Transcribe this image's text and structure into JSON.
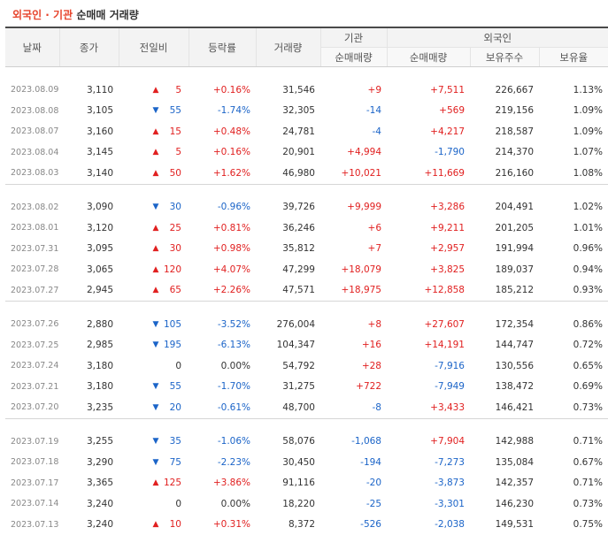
{
  "title": {
    "highlight": "외국인 · 기관",
    "rest": "순매매 거래량"
  },
  "columns": {
    "date": "날짜",
    "close": "종가",
    "change": "전일비",
    "rate": "등락률",
    "volume": "거래량",
    "institution": "기관",
    "foreign": "외국인",
    "inst_net": "순매매량",
    "foreign_net": "순매매량",
    "foreign_holding": "보유주수",
    "foreign_ratio": "보유율"
  },
  "groups": [
    {
      "rows": [
        {
          "date": "2023.08.09",
          "close": "3,110",
          "dir": "up",
          "arrow": "▲",
          "change": "5",
          "rate": "+0.16%",
          "volume": "31,546",
          "inst": "+9",
          "frgn": "+7,511",
          "hold": "226,667",
          "ratio": "1.13%"
        },
        {
          "date": "2023.08.08",
          "close": "3,105",
          "dir": "down",
          "arrow": "▼",
          "change": "55",
          "rate": "-1.74%",
          "volume": "32,305",
          "inst": "-14",
          "frgn": "+569",
          "hold": "219,156",
          "ratio": "1.09%"
        },
        {
          "date": "2023.08.07",
          "close": "3,160",
          "dir": "up",
          "arrow": "▲",
          "change": "15",
          "rate": "+0.48%",
          "volume": "24,781",
          "inst": "-4",
          "frgn": "+4,217",
          "hold": "218,587",
          "ratio": "1.09%"
        },
        {
          "date": "2023.08.04",
          "close": "3,145",
          "dir": "up",
          "arrow": "▲",
          "change": "5",
          "rate": "+0.16%",
          "volume": "20,901",
          "inst": "+4,994",
          "frgn": "-1,790",
          "hold": "214,370",
          "ratio": "1.07%"
        },
        {
          "date": "2023.08.03",
          "close": "3,140",
          "dir": "up",
          "arrow": "▲",
          "change": "50",
          "rate": "+1.62%",
          "volume": "46,980",
          "inst": "+10,021",
          "frgn": "+11,669",
          "hold": "216,160",
          "ratio": "1.08%"
        }
      ]
    },
    {
      "rows": [
        {
          "date": "2023.08.02",
          "close": "3,090",
          "dir": "down",
          "arrow": "▼",
          "change": "30",
          "rate": "-0.96%",
          "volume": "39,726",
          "inst": "+9,999",
          "frgn": "+3,286",
          "hold": "204,491",
          "ratio": "1.02%"
        },
        {
          "date": "2023.08.01",
          "close": "3,120",
          "dir": "up",
          "arrow": "▲",
          "change": "25",
          "rate": "+0.81%",
          "volume": "36,246",
          "inst": "+6",
          "frgn": "+9,211",
          "hold": "201,205",
          "ratio": "1.01%"
        },
        {
          "date": "2023.07.31",
          "close": "3,095",
          "dir": "up",
          "arrow": "▲",
          "change": "30",
          "rate": "+0.98%",
          "volume": "35,812",
          "inst": "+7",
          "frgn": "+2,957",
          "hold": "191,994",
          "ratio": "0.96%"
        },
        {
          "date": "2023.07.28",
          "close": "3,065",
          "dir": "up",
          "arrow": "▲",
          "change": "120",
          "rate": "+4.07%",
          "volume": "47,299",
          "inst": "+18,079",
          "frgn": "+3,825",
          "hold": "189,037",
          "ratio": "0.94%"
        },
        {
          "date": "2023.07.27",
          "close": "2,945",
          "dir": "up",
          "arrow": "▲",
          "change": "65",
          "rate": "+2.26%",
          "volume": "47,571",
          "inst": "+18,975",
          "frgn": "+12,858",
          "hold": "185,212",
          "ratio": "0.93%"
        }
      ]
    },
    {
      "rows": [
        {
          "date": "2023.07.26",
          "close": "2,880",
          "dir": "down",
          "arrow": "▼",
          "change": "105",
          "rate": "-3.52%",
          "volume": "276,004",
          "inst": "+8",
          "frgn": "+27,607",
          "hold": "172,354",
          "ratio": "0.86%"
        },
        {
          "date": "2023.07.25",
          "close": "2,985",
          "dir": "down",
          "arrow": "▼",
          "change": "195",
          "rate": "-6.13%",
          "volume": "104,347",
          "inst": "+16",
          "frgn": "+14,191",
          "hold": "144,747",
          "ratio": "0.72%"
        },
        {
          "date": "2023.07.24",
          "close": "3,180",
          "dir": "flat",
          "arrow": "",
          "change": "0",
          "rate": "0.00%",
          "volume": "54,792",
          "inst": "+28",
          "frgn": "-7,916",
          "hold": "130,556",
          "ratio": "0.65%"
        },
        {
          "date": "2023.07.21",
          "close": "3,180",
          "dir": "down",
          "arrow": "▼",
          "change": "55",
          "rate": "-1.70%",
          "volume": "31,275",
          "inst": "+722",
          "frgn": "-7,949",
          "hold": "138,472",
          "ratio": "0.69%"
        },
        {
          "date": "2023.07.20",
          "close": "3,235",
          "dir": "down",
          "arrow": "▼",
          "change": "20",
          "rate": "-0.61%",
          "volume": "48,700",
          "inst": "-8",
          "frgn": "+3,433",
          "hold": "146,421",
          "ratio": "0.73%"
        }
      ]
    },
    {
      "rows": [
        {
          "date": "2023.07.19",
          "close": "3,255",
          "dir": "down",
          "arrow": "▼",
          "change": "35",
          "rate": "-1.06%",
          "volume": "58,076",
          "inst": "-1,068",
          "frgn": "+7,904",
          "hold": "142,988",
          "ratio": "0.71%"
        },
        {
          "date": "2023.07.18",
          "close": "3,290",
          "dir": "down",
          "arrow": "▼",
          "change": "75",
          "rate": "-2.23%",
          "volume": "30,450",
          "inst": "-194",
          "frgn": "-7,273",
          "hold": "135,084",
          "ratio": "0.67%"
        },
        {
          "date": "2023.07.17",
          "close": "3,365",
          "dir": "up",
          "arrow": "▲",
          "change": "125",
          "rate": "+3.86%",
          "volume": "91,116",
          "inst": "-20",
          "frgn": "-3,873",
          "hold": "142,357",
          "ratio": "0.71%"
        },
        {
          "date": "2023.07.14",
          "close": "3,240",
          "dir": "flat",
          "arrow": "",
          "change": "0",
          "rate": "0.00%",
          "volume": "18,220",
          "inst": "-25",
          "frgn": "-3,301",
          "hold": "146,230",
          "ratio": "0.73%"
        },
        {
          "date": "2023.07.13",
          "close": "3,240",
          "dir": "up",
          "arrow": "▲",
          "change": "10",
          "rate": "+0.31%",
          "volume": "8,372",
          "inst": "-526",
          "frgn": "-2,038",
          "hold": "149,531",
          "ratio": "0.75%"
        }
      ]
    }
  ]
}
